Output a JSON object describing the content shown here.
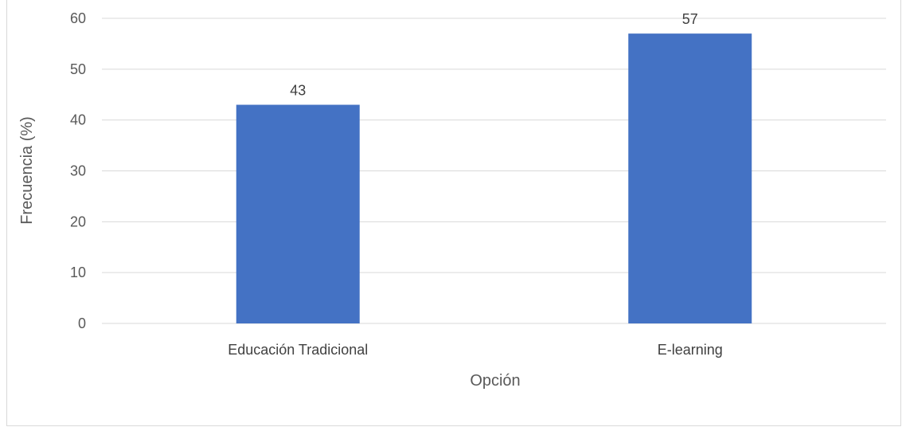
{
  "chart_data": {
    "type": "bar",
    "categories": [
      "Educación Tradicional",
      "E-learning"
    ],
    "values": [
      43,
      57
    ],
    "title": "",
    "xlabel": "Opción",
    "ylabel": "Frecuencia (%)",
    "ylim": [
      0,
      60
    ],
    "yticks": [
      0,
      10,
      20,
      30,
      40,
      50,
      60
    ],
    "grid": true,
    "legend": "none",
    "bar_color": "#4472C4",
    "data_labels": [
      "43",
      "57"
    ]
  }
}
